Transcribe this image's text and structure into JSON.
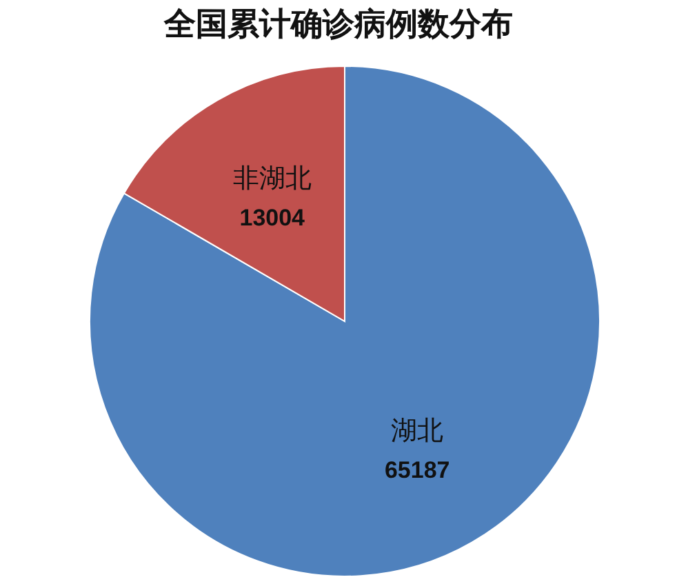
{
  "chart_data": {
    "type": "pie",
    "title": "全国累计确诊病例数分布",
    "categories": [
      "湖北",
      "非湖北"
    ],
    "values": [
      65187,
      13004
    ],
    "colors": [
      "#4f81bd",
      "#c0504d"
    ],
    "data_labels": true
  }
}
